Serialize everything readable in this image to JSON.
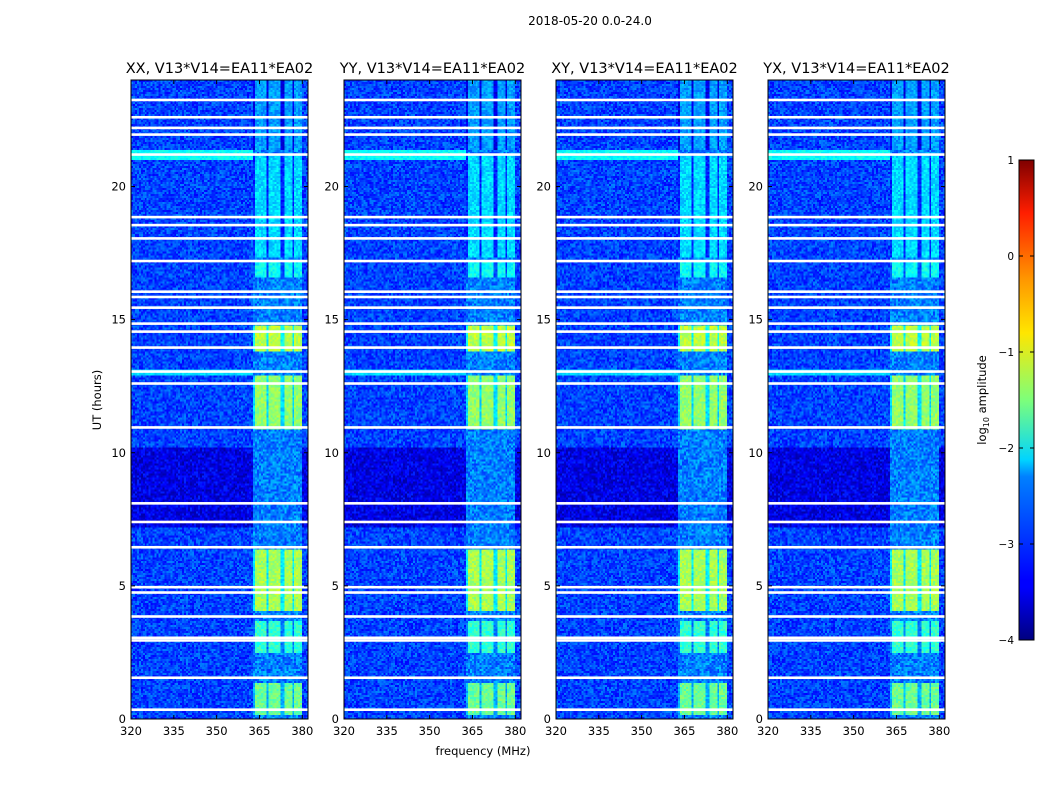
{
  "chart_data": {
    "type": "heatmap",
    "title": "2018-05-20 0.0-24.0",
    "xlabel": "frequency (MHz)",
    "ylabel": "UT (hours)",
    "xlim": [
      320,
      382
    ],
    "ylim": [
      0,
      24
    ],
    "x_ticks": [
      320,
      335,
      350,
      365,
      380
    ],
    "y_ticks": [
      0,
      5,
      10,
      15,
      20
    ],
    "panels": [
      {
        "title": "XX, V13*V14=EA11*EA02"
      },
      {
        "title": "YY, V13*V14=EA11*EA02"
      },
      {
        "title": "XY, V13*V14=EA11*EA02"
      },
      {
        "title": "YX, V13*V14=EA11*EA02"
      }
    ],
    "colorbar": {
      "label": "log10 amplitude",
      "label_main": "log",
      "label_sub": "10",
      "label_rest": " amplitude",
      "range": [
        -4,
        1
      ],
      "ticks": [
        {
          "value": 1,
          "label": "1"
        },
        {
          "value": 0,
          "label": "0"
        },
        {
          "value": -1,
          "label": "−1"
        },
        {
          "value": -2,
          "label": "−2"
        },
        {
          "value": -3,
          "label": "−3"
        },
        {
          "value": -4,
          "label": "−4"
        }
      ],
      "colormap": "jet"
    },
    "bright_band_freq_mhz": [
      363,
      380
    ],
    "bright_subbands_mhz": [
      [
        363.5,
        367.5
      ],
      [
        368.5,
        372.5
      ],
      [
        373.5,
        376.5
      ],
      [
        377,
        380
      ]
    ],
    "flagged_rows_ut": [
      0.35,
      1.55,
      2.95,
      3.05,
      3.85,
      4.75,
      4.95,
      6.45,
      7.4,
      8.1,
      10.95,
      12.6,
      13.05,
      13.95,
      14.55,
      14.85,
      15.45,
      15.85,
      16.05,
      17.2,
      18.05,
      18.55,
      18.85,
      21.2,
      21.95,
      22.2,
      22.6,
      23.25
    ],
    "bright_ut_blocks": [
      {
        "ut": [
          0.15,
          1.35
        ],
        "level": -1.6
      },
      {
        "ut": [
          2.45,
          3.65
        ],
        "level": -1.9
      },
      {
        "ut": [
          4.05,
          6.35
        ],
        "level": -1.3
      },
      {
        "ut": [
          10.9,
          12.9
        ],
        "level": -1.4
      },
      {
        "ut": [
          13.8,
          14.8
        ],
        "level": -1.2
      },
      {
        "ut": [
          16.6,
          17.2
        ],
        "level": -2.1
      },
      {
        "ut": [
          17.3,
          21.2
        ],
        "level": -2.3
      },
      {
        "ut": [
          21.4,
          24.0
        ],
        "level": -2.6
      }
    ]
  }
}
